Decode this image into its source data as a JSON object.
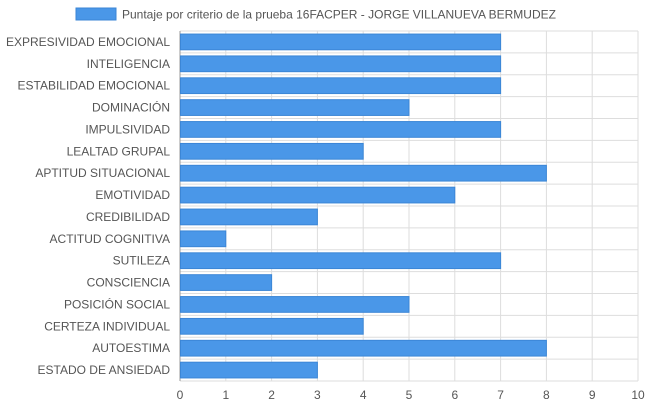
{
  "chart_data": {
    "type": "bar",
    "orientation": "horizontal",
    "categories": [
      "EXPRESIVIDAD EMOCIONAL",
      "INTELIGENCIA",
      "ESTABILIDAD EMOCIONAL",
      "DOMINACIÓN",
      "IMPULSIVIDAD",
      "LEALTAD GRUPAL",
      "APTITUD SITUACIONAL",
      "EMOTIVIDAD",
      "CREDIBILIDAD",
      "ACTITUD COGNITIVA",
      "SUTILEZA",
      "CONSCIENCIA",
      "POSICIÓN SOCIAL",
      "CERTEZA INDIVIDUAL",
      "AUTOESTIMA",
      "ESTADO DE ANSIEDAD"
    ],
    "series": [
      {
        "name": "Puntaje por criterio de la prueba 16FACPER - JORGE VILLANUEVA BERMUDEZ",
        "values": [
          7,
          7,
          7,
          5,
          7,
          4,
          8,
          6,
          3,
          1,
          7,
          2,
          5,
          4,
          8,
          3
        ]
      }
    ],
    "xlim": [
      0,
      10
    ],
    "xticks": [
      "0",
      "1",
      "2",
      "3",
      "4",
      "5",
      "6",
      "7",
      "8",
      "9",
      "10"
    ],
    "grid": true,
    "legend_position": "top",
    "colors": {
      "bar_fill": "#4a97e8",
      "bar_stroke": "#3b86d6",
      "grid": "#dddddd",
      "grid_zero": "#999999",
      "text": "#555555"
    }
  }
}
